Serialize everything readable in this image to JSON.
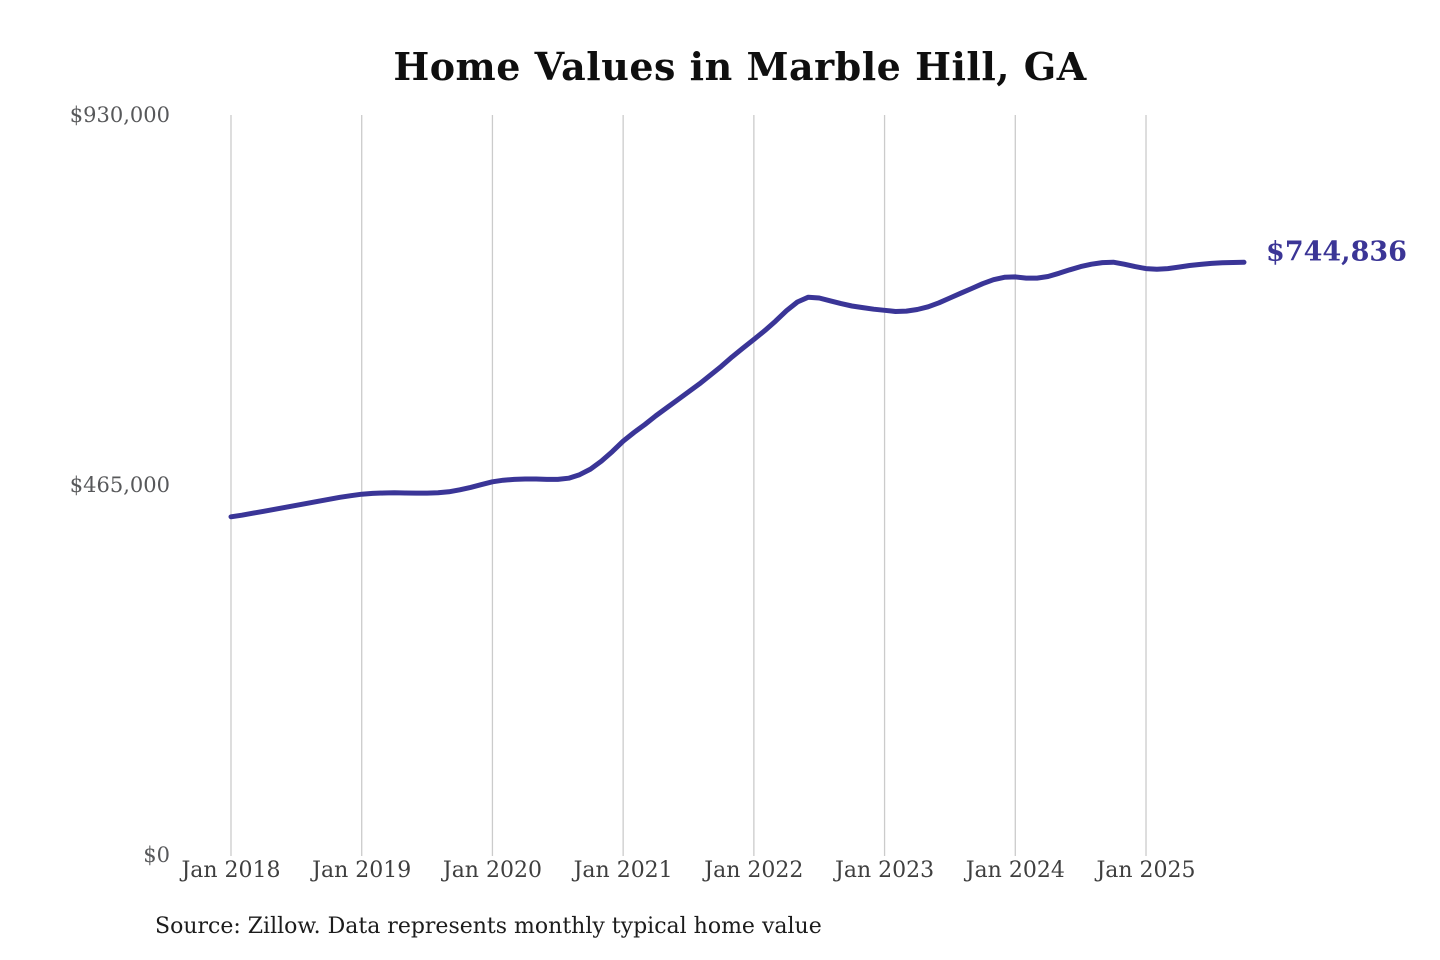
{
  "chart": {
    "title": "Home Values in Marble Hill, GA",
    "end_label": "$744,836",
    "source": "Source: Zillow. Data represents monthly typical home value"
  },
  "chart_data": {
    "type": "line",
    "title": "Home Values in Marble Hill, GA",
    "series_name": "Monthly typical home value (Zillow)",
    "x_start": "Jan 2018",
    "x_interval": "monthly",
    "x_tick_labels": [
      "Jan 2018",
      "Jan 2019",
      "Jan 2020",
      "Jan 2021",
      "Jan 2022",
      "Jan 2023",
      "Jan 2024",
      "Jan 2025"
    ],
    "y_ticks": [
      0,
      465000,
      930000
    ],
    "y_tick_labels": [
      "$0",
      "$465,000",
      "$930,000"
    ],
    "ylim": [
      0,
      930000
    ],
    "grid": "vertical-only",
    "legend": false,
    "final_value": 744836,
    "end_label": "$744,836",
    "line_color": "#3a3597",
    "grid_color": "#cbcbcb",
    "values": [
      425000,
      427000,
      429500,
      432000,
      434500,
      437000,
      439500,
      442000,
      444500,
      447000,
      449500,
      451500,
      453500,
      454500,
      455000,
      455200,
      455000,
      454800,
      454800,
      455200,
      456500,
      459000,
      462000,
      465500,
      469000,
      471000,
      472000,
      472500,
      472500,
      472000,
      472000,
      473500,
      478000,
      485000,
      495000,
      507000,
      520000,
      531000,
      541000,
      552000,
      562000,
      572000,
      582000,
      592000,
      603000,
      614000,
      626000,
      637000,
      648000,
      659000,
      671000,
      684000,
      695000,
      701000,
      700000,
      696500,
      693000,
      690000,
      688000,
      686000,
      684500,
      683000,
      683500,
      685500,
      689000,
      694000,
      700000,
      706000,
      712000,
      718000,
      723000,
      726000,
      726500,
      725000,
      725000,
      727000,
      731000,
      735500,
      739500,
      742500,
      744500,
      745000,
      742500,
      739500,
      737000,
      736200,
      737000,
      738800,
      740800,
      742300,
      743500,
      744200,
      744600,
      744836
    ]
  }
}
